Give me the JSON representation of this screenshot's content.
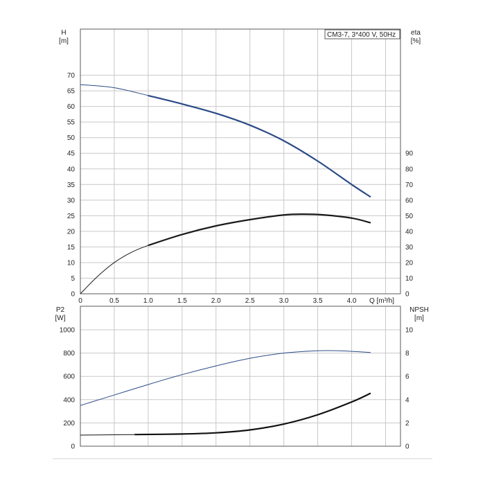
{
  "chart_data": [
    {
      "type": "line",
      "title": "CM3-7, 3*400 V, 50Hz",
      "xlabel": "Q [m³/h]",
      "x_ticks": [
        "0",
        "0.5",
        "1.0",
        "1.5",
        "2.0",
        "2.5",
        "3.0",
        "3.5",
        "4.0"
      ],
      "xlim": [
        0,
        4.72
      ],
      "y_left": {
        "label_top": "H",
        "label_unit": "[m]",
        "ticks": [
          "0",
          "5",
          "10",
          "15",
          "20",
          "25",
          "30",
          "35",
          "40",
          "45",
          "50",
          "55",
          "60",
          "65",
          "70"
        ],
        "lim": [
          0,
          70
        ]
      },
      "y_right": {
        "label_top": "eta",
        "label_unit": "[%]",
        "ticks": [
          "0",
          "10",
          "20",
          "30",
          "40",
          "50",
          "60",
          "70",
          "80",
          "90"
        ],
        "lim": [
          0,
          140
        ]
      },
      "grid": true,
      "series": [
        {
          "axis": "left",
          "color": "#2b4a86",
          "x": [
            0,
            0.5,
            1.0,
            1.5,
            2.0,
            2.5,
            3.0,
            3.5,
            4.0,
            4.28
          ],
          "y": [
            67,
            66,
            63.5,
            60.8,
            57.8,
            54,
            49,
            42.5,
            35,
            31
          ]
        },
        {
          "axis": "right",
          "color": "#1a1a1a",
          "x": [
            0,
            0.25,
            0.5,
            0.75,
            1.0,
            1.5,
            2.0,
            2.5,
            3.0,
            3.3,
            3.6,
            4.0,
            4.28
          ],
          "y": [
            0,
            11,
            20,
            26.5,
            31,
            38,
            43.5,
            47.5,
            50.5,
            51,
            50.5,
            48.5,
            45.5
          ]
        }
      ]
    },
    {
      "type": "line",
      "xlim": [
        0,
        4.72
      ],
      "y_left": {
        "label_top": "P2",
        "label_unit": "[W]",
        "ticks": [
          "0",
          "200",
          "400",
          "600",
          "800",
          "1000"
        ],
        "lim": [
          0,
          1000
        ]
      },
      "y_right": {
        "label_top": "NPSH",
        "label_unit": "[m]",
        "ticks": [
          "0",
          "2",
          "4",
          "6",
          "8",
          "10"
        ],
        "lim": [
          0,
          10
        ]
      },
      "grid": true,
      "series": [
        {
          "axis": "left",
          "color": "#2b4a86",
          "x": [
            0,
            0.5,
            1.0,
            1.5,
            2.0,
            2.5,
            3.0,
            3.5,
            3.8,
            4.0,
            4.28
          ],
          "y": [
            350,
            440,
            530,
            615,
            690,
            755,
            800,
            820,
            820,
            815,
            805
          ]
        },
        {
          "axis": "right",
          "color": "#111111",
          "x": [
            0,
            0.5,
            0.8,
            1.5,
            2.0,
            2.5,
            3.0,
            3.5,
            4.0,
            4.28
          ],
          "y": [
            0.95,
            0.98,
            1.0,
            1.05,
            1.15,
            1.4,
            1.9,
            2.7,
            3.8,
            4.55
          ]
        }
      ]
    }
  ]
}
